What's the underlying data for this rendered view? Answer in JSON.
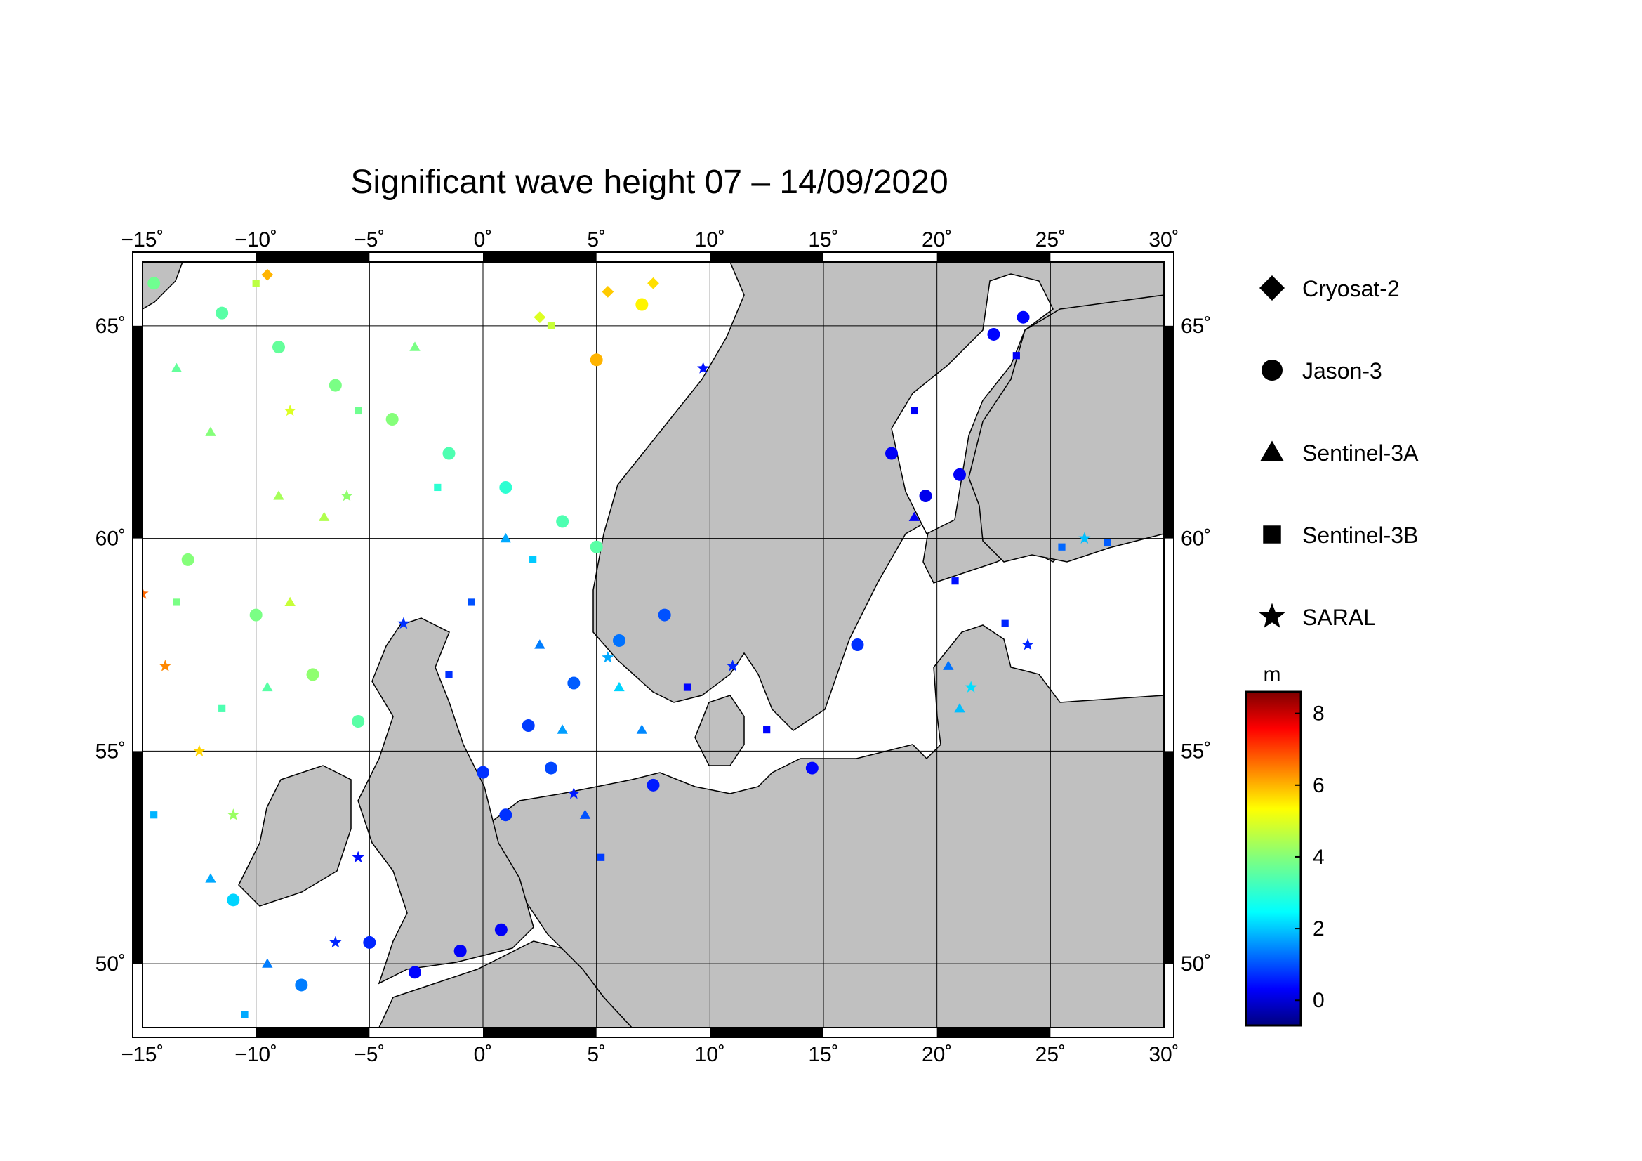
{
  "title": "Significant wave height 07 – 14/09/2020",
  "map": {
    "lon_range": [
      -15,
      30
    ],
    "lat_range": [
      48.5,
      66.5
    ],
    "lon_ticks": [
      "−15˚",
      "−10˚",
      "−5˚",
      "0˚",
      "5˚",
      "10˚",
      "15˚",
      "20˚",
      "25˚",
      "30˚"
    ],
    "lat_ticks": [
      "50˚",
      "55˚",
      "60˚",
      "65˚"
    ],
    "land_color": "#c0c0c0",
    "sea_color": "#ffffff"
  },
  "legend": {
    "items": [
      {
        "name": "Cryosat-2",
        "symbol": "diamond"
      },
      {
        "name": "Jason-3",
        "symbol": "circle"
      },
      {
        "name": "Sentinel-3A",
        "symbol": "triangle"
      },
      {
        "name": "Sentinel-3B",
        "symbol": "square"
      },
      {
        "name": "SARAL",
        "symbol": "star"
      }
    ]
  },
  "colorbar": {
    "unit": "m",
    "range": [
      -0.7,
      8.6
    ],
    "ticks": [
      "0",
      "2",
      "4",
      "6",
      "8"
    ],
    "colormap": "jet"
  },
  "chart_data": {
    "type": "scatter",
    "title": "Significant wave height 07 – 14/09/2020",
    "xlabel": "",
    "ylabel": "",
    "xlim": [
      -15,
      30
    ],
    "ylim": [
      48.5,
      66.5
    ],
    "value_unit": "m",
    "series": [
      {
        "name": "Jason-3",
        "points": [
          {
            "lon": -14.5,
            "lat": 66.0,
            "swh": 3.8
          },
          {
            "lon": -11.5,
            "lat": 65.3,
            "swh": 3.6
          },
          {
            "lon": -9.0,
            "lat": 64.5,
            "swh": 3.7
          },
          {
            "lon": -6.5,
            "lat": 63.6,
            "swh": 3.9
          },
          {
            "lon": -4.0,
            "lat": 62.8,
            "swh": 4.0
          },
          {
            "lon": -1.5,
            "lat": 62.0,
            "swh": 3.5
          },
          {
            "lon": 1.0,
            "lat": 61.2,
            "swh": 3.2
          },
          {
            "lon": 3.5,
            "lat": 60.4,
            "swh": 3.5
          },
          {
            "lon": 5.0,
            "lat": 59.8,
            "swh": 3.6
          },
          {
            "lon": -13.0,
            "lat": 59.5,
            "swh": 4.0
          },
          {
            "lon": -10.0,
            "lat": 58.2,
            "swh": 3.9
          },
          {
            "lon": -7.5,
            "lat": 56.8,
            "swh": 4.1
          },
          {
            "lon": -5.5,
            "lat": 55.7,
            "swh": 3.6
          },
          {
            "lon": 0.0,
            "lat": 54.5,
            "swh": 0.9
          },
          {
            "lon": 2.0,
            "lat": 55.6,
            "swh": 1.0
          },
          {
            "lon": 4.0,
            "lat": 56.6,
            "swh": 1.3
          },
          {
            "lon": 6.0,
            "lat": 57.6,
            "swh": 1.5
          },
          {
            "lon": 8.0,
            "lat": 58.2,
            "swh": 1.2
          },
          {
            "lon": 1.0,
            "lat": 53.5,
            "swh": 0.9
          },
          {
            "lon": 3.0,
            "lat": 54.6,
            "swh": 1.1
          },
          {
            "lon": 7.5,
            "lat": 54.2,
            "swh": 0.7
          },
          {
            "lon": -11.0,
            "lat": 51.5,
            "swh": 2.4
          },
          {
            "lon": -8.0,
            "lat": 49.5,
            "swh": 1.6
          },
          {
            "lon": -5.0,
            "lat": 50.5,
            "swh": 0.8
          },
          {
            "lon": -3.0,
            "lat": 49.8,
            "swh": 0.5
          },
          {
            "lon": -1.0,
            "lat": 50.3,
            "swh": 0.4
          },
          {
            "lon": 0.8,
            "lat": 50.8,
            "swh": 0.4
          },
          {
            "lon": 18.0,
            "lat": 62.0,
            "swh": 0.4
          },
          {
            "lon": 19.5,
            "lat": 61.0,
            "swh": 0.3
          },
          {
            "lon": 22.5,
            "lat": 64.8,
            "swh": 0.5
          },
          {
            "lon": 23.8,
            "lat": 65.2,
            "swh": 0.5
          },
          {
            "lon": 21.0,
            "lat": 61.5,
            "swh": 0.4
          },
          {
            "lon": 14.5,
            "lat": 54.6,
            "swh": 0.5
          },
          {
            "lon": 16.5,
            "lat": 57.5,
            "swh": 0.9
          },
          {
            "lon": 7.0,
            "lat": 65.5,
            "swh": 5.2
          },
          {
            "lon": 5.0,
            "lat": 64.2,
            "swh": 5.8
          }
        ]
      },
      {
        "name": "Sentinel-3A",
        "points": [
          {
            "lon": -13.5,
            "lat": 64.0,
            "swh": 3.7
          },
          {
            "lon": -12.0,
            "lat": 62.5,
            "swh": 4.0
          },
          {
            "lon": -9.0,
            "lat": 61.0,
            "swh": 4.3
          },
          {
            "lon": -7.0,
            "lat": 60.5,
            "swh": 4.4
          },
          {
            "lon": -3.0,
            "lat": 64.5,
            "swh": 3.9
          },
          {
            "lon": 1.0,
            "lat": 60.0,
            "swh": 2.0
          },
          {
            "lon": 2.5,
            "lat": 57.5,
            "swh": 1.6
          },
          {
            "lon": 3.5,
            "lat": 55.5,
            "swh": 1.9
          },
          {
            "lon": 4.5,
            "lat": 53.5,
            "swh": 1.2
          },
          {
            "lon": 6.0,
            "lat": 56.5,
            "swh": 2.4
          },
          {
            "lon": 7.0,
            "lat": 55.5,
            "swh": 1.7
          },
          {
            "lon": -12.0,
            "lat": 52.0,
            "swh": 2.0
          },
          {
            "lon": -9.5,
            "lat": 50.0,
            "swh": 1.6
          },
          {
            "lon": -8.5,
            "lat": 58.5,
            "swh": 4.6
          },
          {
            "lon": -9.5,
            "lat": 56.5,
            "swh": 3.6
          },
          {
            "lon": 19.0,
            "lat": 60.5,
            "swh": 0.4
          },
          {
            "lon": 20.5,
            "lat": 57.0,
            "swh": 1.5
          },
          {
            "lon": 21.0,
            "lat": 56.0,
            "swh": 2.2
          }
        ]
      },
      {
        "name": "Sentinel-3B",
        "points": [
          {
            "lon": -10.0,
            "lat": 66.0,
            "swh": 4.5
          },
          {
            "lon": -5.5,
            "lat": 63.0,
            "swh": 3.8
          },
          {
            "lon": -2.0,
            "lat": 61.2,
            "swh": 3.2
          },
          {
            "lon": -13.5,
            "lat": 58.5,
            "swh": 3.9
          },
          {
            "lon": -11.5,
            "lat": 56.0,
            "swh": 3.5
          },
          {
            "lon": -1.5,
            "lat": 56.8,
            "swh": 0.9
          },
          {
            "lon": -0.5,
            "lat": 58.5,
            "swh": 1.2
          },
          {
            "lon": 2.2,
            "lat": 59.5,
            "swh": 2.3
          },
          {
            "lon": 5.2,
            "lat": 52.5,
            "swh": 1.0
          },
          {
            "lon": -14.5,
            "lat": 53.5,
            "swh": 2.1
          },
          {
            "lon": -10.5,
            "lat": 48.8,
            "swh": 2.0
          },
          {
            "lon": 19.0,
            "lat": 63.0,
            "swh": 0.4
          },
          {
            "lon": 20.8,
            "lat": 59.0,
            "swh": 0.6
          },
          {
            "lon": 25.5,
            "lat": 59.8,
            "swh": 1.4
          },
          {
            "lon": 27.5,
            "lat": 59.9,
            "swh": 1.3
          },
          {
            "lon": 23.0,
            "lat": 58.0,
            "swh": 0.8
          },
          {
            "lon": 12.5,
            "lat": 55.5,
            "swh": 0.5
          },
          {
            "lon": 9.0,
            "lat": 56.5,
            "swh": 0.5
          },
          {
            "lon": 23.5,
            "lat": 64.3,
            "swh": 0.4
          },
          {
            "lon": 3.0,
            "lat": 65.0,
            "swh": 4.6
          }
        ]
      },
      {
        "name": "SARAL",
        "points": [
          {
            "lon": -15.0,
            "lat": 58.7,
            "swh": 6.5
          },
          {
            "lon": -14.0,
            "lat": 57.0,
            "swh": 6.2
          },
          {
            "lon": -12.5,
            "lat": 55.0,
            "swh": 5.5
          },
          {
            "lon": -11.0,
            "lat": 53.5,
            "swh": 4.2
          },
          {
            "lon": -8.5,
            "lat": 63.0,
            "swh": 4.8
          },
          {
            "lon": -6.0,
            "lat": 61.0,
            "swh": 4.1
          },
          {
            "lon": -3.5,
            "lat": 58.0,
            "swh": 0.9
          },
          {
            "lon": -5.5,
            "lat": 52.5,
            "swh": 0.6
          },
          {
            "lon": -6.5,
            "lat": 50.5,
            "swh": 0.8
          },
          {
            "lon": 4.0,
            "lat": 54.0,
            "swh": 0.7
          },
          {
            "lon": 5.5,
            "lat": 57.2,
            "swh": 2.0
          },
          {
            "lon": 9.7,
            "lat": 64.0,
            "swh": 0.6
          },
          {
            "lon": 11.0,
            "lat": 57.0,
            "swh": 0.8
          },
          {
            "lon": 21.5,
            "lat": 56.5,
            "swh": 2.5
          },
          {
            "lon": 24.0,
            "lat": 57.5,
            "swh": 0.8
          },
          {
            "lon": 26.5,
            "lat": 60.0,
            "swh": 2.2
          }
        ]
      },
      {
        "name": "Cryosat-2",
        "points": [
          {
            "lon": 5.5,
            "lat": 65.8,
            "swh": 5.6
          },
          {
            "lon": 7.5,
            "lat": 66.0,
            "swh": 5.4
          },
          {
            "lon": -9.5,
            "lat": 66.2,
            "swh": 5.8
          },
          {
            "lon": 2.5,
            "lat": 65.2,
            "swh": 4.8
          }
        ]
      }
    ]
  }
}
